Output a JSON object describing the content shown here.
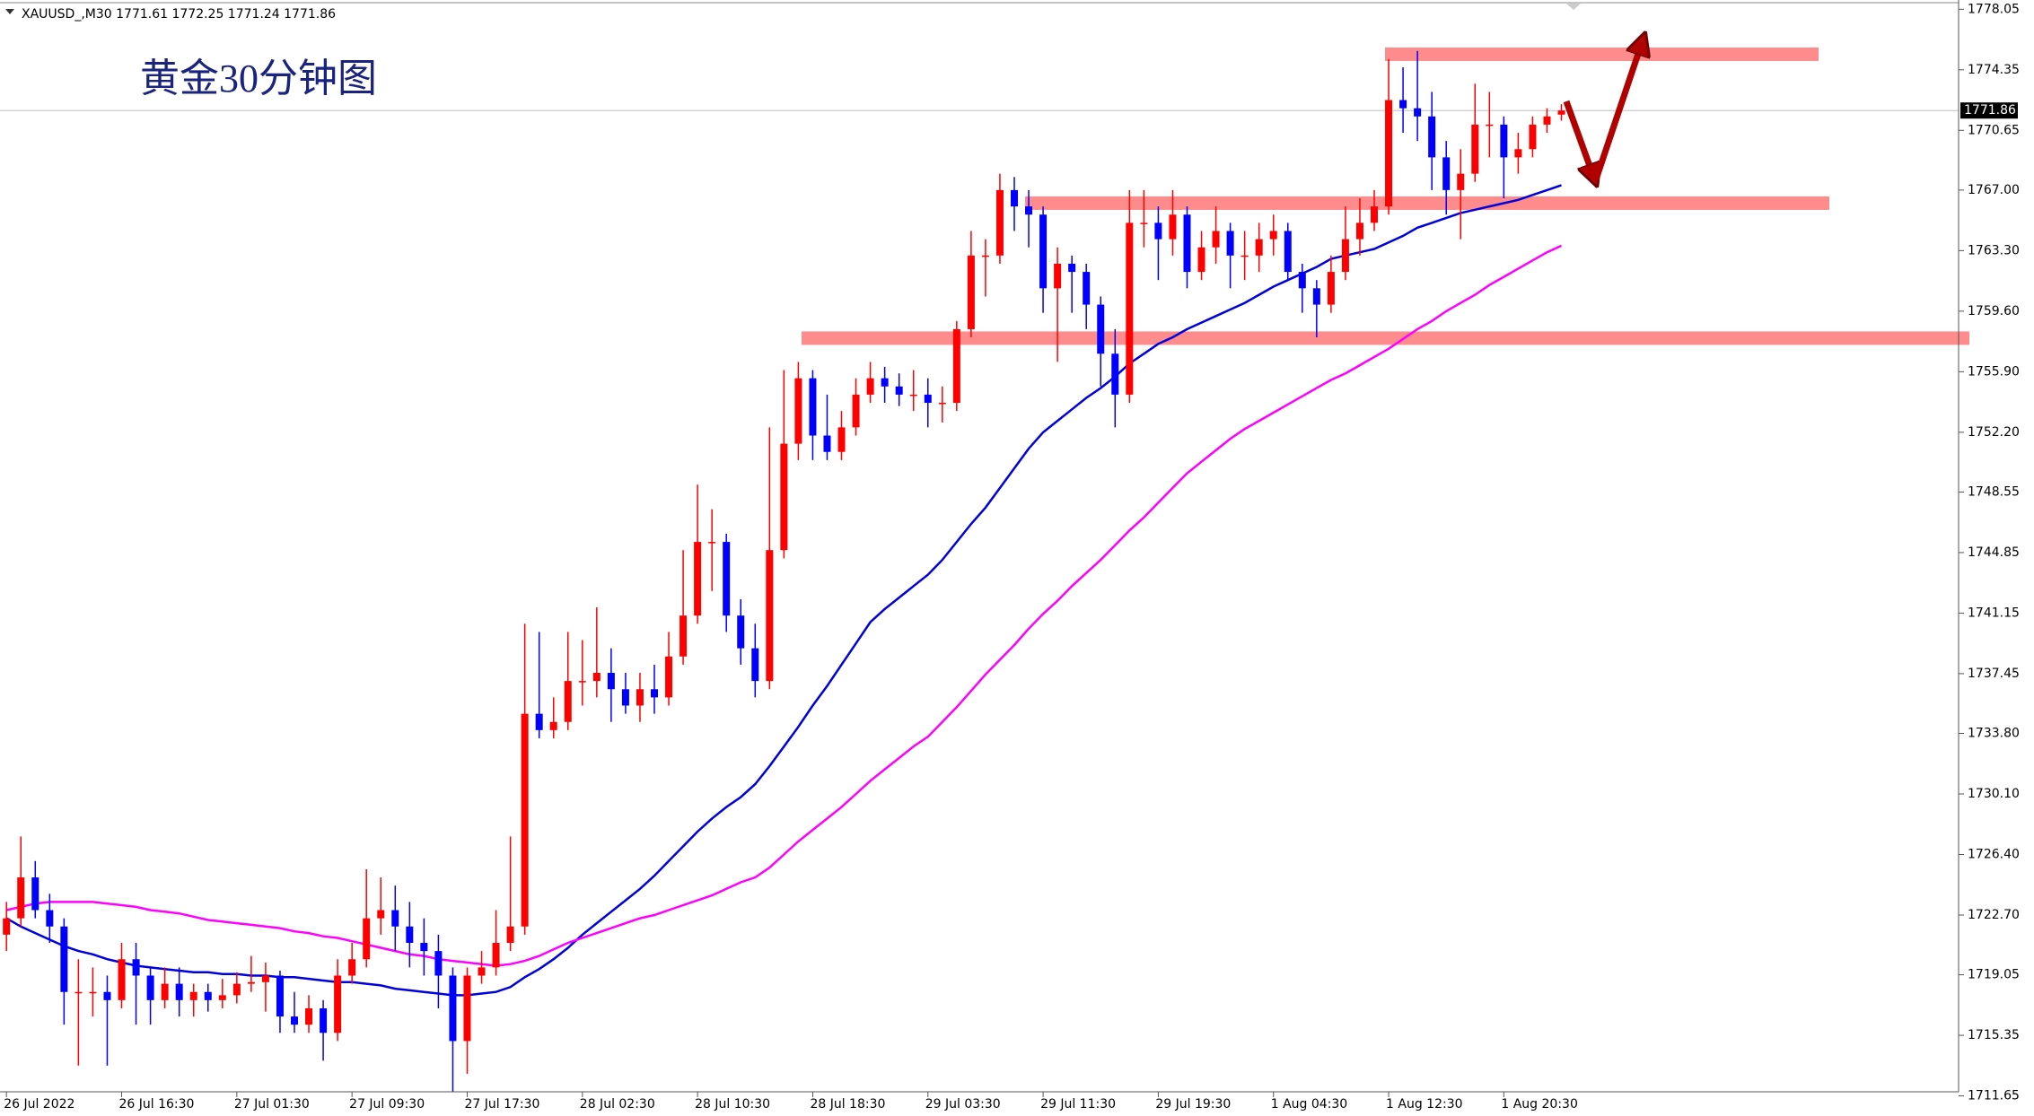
{
  "chart_data": {
    "type": "candlestick",
    "header": "XAUUSD_,M30  1771.61 1772.25 1771.24 1771.86",
    "title": "黄金30分钟图",
    "categories": [
      "26 Jul 2022",
      null,
      null,
      null,
      null,
      null,
      null,
      null,
      "26 Jul 16:30",
      null,
      null,
      null,
      null,
      null,
      null,
      null,
      "27 Jul 01:30",
      null,
      null,
      null,
      null,
      null,
      null,
      null,
      "27 Jul 09:30",
      null,
      null,
      null,
      null,
      null,
      null,
      null,
      "27 Jul 17:30",
      null,
      null,
      null,
      null,
      null,
      null,
      null,
      "28 Jul 02:30",
      null,
      null,
      null,
      null,
      null,
      null,
      null,
      "28 Jul 10:30",
      null,
      null,
      null,
      null,
      null,
      null,
      null,
      "28 Jul 18:30",
      null,
      null,
      null,
      null,
      null,
      null,
      null,
      "29 Jul 03:30",
      null,
      null,
      null,
      null,
      null,
      null,
      null,
      "29 Jul 11:30",
      null,
      null,
      null,
      null,
      null,
      null,
      null,
      "29 Jul 19:30",
      null,
      null,
      null,
      null,
      null,
      null,
      null,
      "1 Aug 04:30",
      null,
      null,
      null,
      null,
      null,
      null,
      null,
      "1 Aug 12:30",
      null,
      null,
      null,
      null,
      null,
      null,
      null,
      "1 Aug 20:30",
      null,
      null,
      null,
      null
    ],
    "ohlc": [
      [
        1721.5,
        1723.5,
        1720.5,
        1722.5
      ],
      [
        1722.5,
        1727.5,
        1722,
        1725
      ],
      [
        1725,
        1726,
        1722.5,
        1723
      ],
      [
        1723,
        1724,
        1721,
        1722
      ],
      [
        1722,
        1722.5,
        1716,
        1718
      ],
      [
        1718,
        1720,
        1713.5,
        1718
      ],
      [
        1718,
        1719.5,
        1716.5,
        1718
      ],
      [
        1718,
        1719,
        1713.5,
        1717.5
      ],
      [
        1717.5,
        1721,
        1717,
        1720
      ],
      [
        1720,
        1721,
        1716,
        1719
      ],
      [
        1719,
        1719.5,
        1716,
        1717.5
      ],
      [
        1717.5,
        1719.5,
        1717,
        1718.5
      ],
      [
        1718.5,
        1719.5,
        1716.5,
        1717.5
      ],
      [
        1717.5,
        1718.5,
        1716.5,
        1718
      ],
      [
        1718,
        1718.5,
        1716.8,
        1717.5
      ],
      [
        1717.5,
        1718.8,
        1717,
        1717.8
      ],
      [
        1717.8,
        1719.2,
        1717.3,
        1718.5
      ],
      [
        1718.5,
        1720.2,
        1718,
        1718.6
      ],
      [
        1718.6,
        1719.8,
        1716.8,
        1719
      ],
      [
        1719,
        1719.3,
        1715.5,
        1716.5
      ],
      [
        1716.5,
        1718,
        1715.5,
        1716
      ],
      [
        1716,
        1717.8,
        1715.5,
        1717
      ],
      [
        1717,
        1717.5,
        1713.8,
        1715.5
      ],
      [
        1715.5,
        1720,
        1715,
        1719
      ],
      [
        1719,
        1721,
        1718.5,
        1720
      ],
      [
        1720,
        1725.5,
        1719.5,
        1722.5
      ],
      [
        1722.5,
        1725,
        1721.5,
        1723
      ],
      [
        1723,
        1724.5,
        1720.5,
        1722
      ],
      [
        1722,
        1723.5,
        1719.5,
        1721
      ],
      [
        1721,
        1722.5,
        1719,
        1720.5
      ],
      [
        1720.5,
        1721.5,
        1717,
        1719
      ],
      [
        1719,
        1719.5,
        1711.9,
        1715
      ],
      [
        1715,
        1719.5,
        1713,
        1719
      ],
      [
        1719,
        1720.5,
        1718.5,
        1719.5
      ],
      [
        1719.5,
        1723,
        1719,
        1721
      ],
      [
        1721,
        1727.5,
        1720.5,
        1722
      ],
      [
        1722,
        1740.5,
        1721.5,
        1735
      ],
      [
        1735,
        1740,
        1733.5,
        1734
      ],
      [
        1734,
        1736,
        1733.5,
        1734.5
      ],
      [
        1734.5,
        1740,
        1734,
        1737
      ],
      [
        1737,
        1739.5,
        1735.5,
        1737
      ],
      [
        1737,
        1741.5,
        1736,
        1737.5
      ],
      [
        1737.5,
        1739,
        1734.5,
        1736.5
      ],
      [
        1736.5,
        1737.5,
        1735,
        1735.5
      ],
      [
        1735.5,
        1737.5,
        1734.5,
        1736.5
      ],
      [
        1736.5,
        1738,
        1735,
        1736
      ],
      [
        1736,
        1740,
        1735.5,
        1738.5
      ],
      [
        1738.5,
        1745,
        1738,
        1741
      ],
      [
        1741,
        1749,
        1740.5,
        1745.5
      ],
      [
        1745.5,
        1747.5,
        1742.5,
        1745.5
      ],
      [
        1745.5,
        1746,
        1740,
        1741
      ],
      [
        1741,
        1742,
        1738,
        1739
      ],
      [
        1739,
        1740.5,
        1736,
        1737
      ],
      [
        1737,
        1752.5,
        1736.5,
        1745
      ],
      [
        1745,
        1756,
        1744.5,
        1751.5
      ],
      [
        1751.5,
        1756.5,
        1750.5,
        1755.5
      ],
      [
        1755.5,
        1756,
        1750.5,
        1752
      ],
      [
        1752,
        1754.5,
        1750.5,
        1751
      ],
      [
        1751,
        1753.5,
        1750.5,
        1752.5
      ],
      [
        1752.5,
        1755.5,
        1752,
        1754.5
      ],
      [
        1754.5,
        1756.5,
        1754,
        1755.5
      ],
      [
        1755.5,
        1756.2,
        1754,
        1755
      ],
      [
        1755,
        1755.8,
        1753.8,
        1754.5
      ],
      [
        1754.5,
        1756,
        1753.5,
        1754.5
      ],
      [
        1754.5,
        1755.5,
        1752.5,
        1754
      ],
      [
        1754,
        1755,
        1752.8,
        1754
      ],
      [
        1754,
        1759,
        1753.5,
        1758.5
      ],
      [
        1758.5,
        1764.5,
        1758,
        1763
      ],
      [
        1763,
        1764,
        1760.5,
        1763
      ],
      [
        1763,
        1768,
        1762.5,
        1767
      ],
      [
        1767,
        1767.8,
        1764.5,
        1766
      ],
      [
        1766,
        1767,
        1763.5,
        1765.5
      ],
      [
        1765.5,
        1766,
        1759.5,
        1761
      ],
      [
        1761,
        1763.5,
        1756.5,
        1762.5
      ],
      [
        1762.5,
        1763,
        1759.5,
        1762
      ],
      [
        1762,
        1762.5,
        1758.5,
        1760
      ],
      [
        1760,
        1760.5,
        1755,
        1757
      ],
      [
        1757,
        1758.5,
        1752.5,
        1754.5
      ],
      [
        1754.5,
        1767,
        1754,
        1765
      ],
      [
        1765,
        1767,
        1763.5,
        1765
      ],
      [
        1765,
        1766,
        1761.5,
        1764
      ],
      [
        1764,
        1767,
        1763,
        1765.5
      ],
      [
        1765.5,
        1766,
        1761,
        1762
      ],
      [
        1762,
        1764.5,
        1761.5,
        1763.5
      ],
      [
        1763.5,
        1766,
        1762.5,
        1764.5
      ],
      [
        1764.5,
        1765,
        1761,
        1763
      ],
      [
        1763,
        1764.5,
        1761.5,
        1763
      ],
      [
        1763,
        1765,
        1762,
        1764
      ],
      [
        1764,
        1765.5,
        1763,
        1764.5
      ],
      [
        1764.5,
        1765,
        1761.5,
        1762
      ],
      [
        1762,
        1762.5,
        1759.5,
        1761
      ],
      [
        1761,
        1761.5,
        1758,
        1760
      ],
      [
        1760,
        1763,
        1759.5,
        1762
      ],
      [
        1762,
        1766,
        1761.5,
        1764
      ],
      [
        1764,
        1766.5,
        1763,
        1765
      ],
      [
        1765,
        1767,
        1764.5,
        1766
      ],
      [
        1766,
        1775,
        1765.5,
        1772.5
      ],
      [
        1772.5,
        1774.5,
        1770.5,
        1772
      ],
      [
        1772,
        1775.5,
        1770,
        1771.5
      ],
      [
        1771.5,
        1773,
        1767,
        1769
      ],
      [
        1769,
        1770,
        1765.5,
        1767
      ],
      [
        1767,
        1769.5,
        1764,
        1768
      ],
      [
        1768,
        1773.5,
        1767.5,
        1771
      ],
      [
        1771,
        1773,
        1769,
        1771
      ],
      [
        1771,
        1771.5,
        1766.5,
        1769
      ],
      [
        1769,
        1770.5,
        1768,
        1769.5
      ],
      [
        1769.5,
        1771.5,
        1769,
        1771
      ],
      [
        1771,
        1772,
        1770.5,
        1771.5
      ],
      [
        1771.61,
        1772.25,
        1771.24,
        1771.86
      ]
    ],
    "up_color": "#ff0000",
    "down_color": "#0000ff",
    "lines": [
      {
        "color": "#0000dd",
        "values": [
          1722.5,
          1722,
          1721.6,
          1721.2,
          1720.8,
          1720.5,
          1720.3,
          1720,
          1719.8,
          1719.6,
          1719.5,
          1719.4,
          1719.3,
          1719.2,
          1719.2,
          1719.1,
          1719.1,
          1719,
          1719,
          1718.9,
          1718.9,
          1718.8,
          1718.7,
          1718.6,
          1718.6,
          1718.5,
          1718.4,
          1718.2,
          1718.1,
          1718,
          1717.9,
          1717.8,
          1717.8,
          1717.9,
          1718,
          1718.3,
          1718.9,
          1719.4,
          1720,
          1720.7,
          1721.5,
          1722.2,
          1722.9,
          1723.6,
          1724.3,
          1725.1,
          1726,
          1726.9,
          1727.8,
          1728.6,
          1729.3,
          1729.9,
          1730.7,
          1731.8,
          1733,
          1734.2,
          1735.5,
          1736.7,
          1738,
          1739.3,
          1740.6,
          1741.4,
          1742.1,
          1742.8,
          1743.5,
          1744.4,
          1745.5,
          1746.6,
          1747.6,
          1748.8,
          1750,
          1751.2,
          1752.2,
          1752.9,
          1753.6,
          1754.3,
          1754.9,
          1755.6,
          1756.4,
          1757,
          1757.6,
          1758,
          1758.5,
          1758.9,
          1759.3,
          1759.7,
          1760.1,
          1760.6,
          1761.1,
          1761.5,
          1761.9,
          1762.3,
          1762.8,
          1763,
          1763.2,
          1763.4,
          1763.8,
          1764.2,
          1764.7,
          1765,
          1765.3,
          1765.6,
          1765.8,
          1766,
          1766.2,
          1766.4,
          1766.7,
          1767,
          1767.3
        ]
      },
      {
        "color": "#ff00ff",
        "values": [
          1723,
          1723.2,
          1723.4,
          1723.5,
          1723.5,
          1723.5,
          1723.5,
          1723.4,
          1723.3,
          1723.2,
          1723,
          1722.9,
          1722.8,
          1722.6,
          1722.4,
          1722.3,
          1722.2,
          1722.1,
          1722,
          1721.9,
          1721.7,
          1721.6,
          1721.4,
          1721.3,
          1721.1,
          1720.9,
          1720.7,
          1720.5,
          1720.3,
          1720.2,
          1720,
          1719.9,
          1719.8,
          1719.7,
          1719.6,
          1719.7,
          1719.9,
          1720.2,
          1720.6,
          1721,
          1721.3,
          1721.6,
          1721.9,
          1722.2,
          1722.5,
          1722.7,
          1723,
          1723.3,
          1723.6,
          1723.9,
          1724.3,
          1724.7,
          1725,
          1725.6,
          1726.4,
          1727.2,
          1727.9,
          1728.6,
          1729.3,
          1730.1,
          1730.9,
          1731.6,
          1732.3,
          1733,
          1733.6,
          1734.5,
          1735.4,
          1736.4,
          1737.4,
          1738.3,
          1739.2,
          1740.2,
          1741.1,
          1741.9,
          1742.8,
          1743.6,
          1744.4,
          1745.3,
          1746.2,
          1747,
          1747.9,
          1748.8,
          1749.7,
          1750.4,
          1751.1,
          1751.8,
          1752.4,
          1752.9,
          1753.4,
          1753.9,
          1754.4,
          1754.9,
          1755.4,
          1755.8,
          1756.3,
          1756.8,
          1757.3,
          1757.9,
          1758.5,
          1759,
          1759.6,
          1760.1,
          1760.6,
          1761.2,
          1761.7,
          1762.2,
          1762.7,
          1763.2,
          1763.6
        ]
      }
    ],
    "zones": [
      1775.3,
      1766.2,
      1757.95
    ],
    "zone_color": "#ff7f7f",
    "last_price": 1771.86,
    "ylim": [
      1711.9,
      1778.45
    ],
    "yticks": [
      1778.05,
      1774.35,
      1770.65,
      {
        "value": 1767,
        "label": "1767.00"
      },
      {
        "value": 1763.3,
        "label": "1763.30"
      },
      {
        "value": 1759.6,
        "label": "1759.60"
      },
      {
        "value": 1755.9,
        "label": "1755.90"
      },
      {
        "value": 1752.2,
        "label": "1752.20"
      },
      1748.55,
      1744.85,
      1741.15,
      1737.45,
      {
        "value": 1733.8,
        "label": "1733.80"
      },
      {
        "value": 1730.1,
        "label": "1730.10"
      },
      {
        "value": 1726.4,
        "label": "1726.40"
      },
      {
        "value": 1722.7,
        "label": "1722.70"
      },
      1719.05,
      1715.35,
      1711.65
    ]
  }
}
